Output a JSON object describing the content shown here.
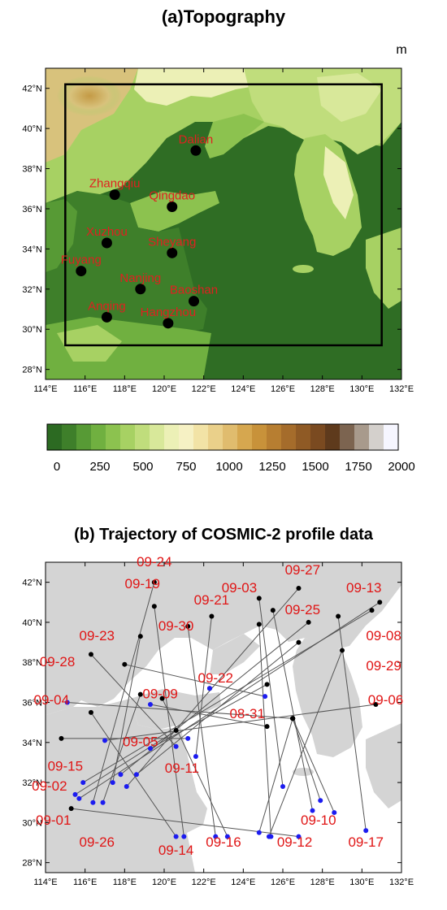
{
  "panel_a": {
    "title": "(a)Topography",
    "unit": "m",
    "lon_ticks": [
      "114°E",
      "116°E",
      "118°E",
      "120°E",
      "122°E",
      "124°E",
      "126°E",
      "128°E",
      "130°E",
      "132°E"
    ],
    "lat_ticks": [
      "28°N",
      "30°N",
      "32°N",
      "34°N",
      "36°N",
      "38°N",
      "40°N",
      "42°N"
    ],
    "colorbar": {
      "labels": [
        "0",
        "250",
        "500",
        "750",
        "1000",
        "1250",
        "1500",
        "1750",
        "2000"
      ],
      "colors": [
        "#2c6a22",
        "#3e7f2a",
        "#579a35",
        "#70b040",
        "#8cc24f",
        "#a7d163",
        "#c0dd7c",
        "#d8e89a",
        "#ecf0b6",
        "#f6f1c4",
        "#f2e3a6",
        "#ead08a",
        "#e0bc6e",
        "#d6a74f",
        "#c8923a",
        "#b77e31",
        "#a56c2b",
        "#8f5a25",
        "#7a4a20",
        "#5e3a1c",
        "#7c6450",
        "#a89a8c",
        "#d4d0cc",
        "#f6f6ff"
      ]
    },
    "cities": [
      {
        "name": "Dalian",
        "lon": 121.6,
        "lat": 38.9
      },
      {
        "name": "Zhangqiu",
        "lon": 117.5,
        "lat": 36.7
      },
      {
        "name": "Qingdao",
        "lon": 120.4,
        "lat": 36.1
      },
      {
        "name": "Xuzhou",
        "lon": 117.1,
        "lat": 34.3
      },
      {
        "name": "Sheyang",
        "lon": 120.4,
        "lat": 33.8
      },
      {
        "name": "Fuyang",
        "lon": 115.8,
        "lat": 32.9
      },
      {
        "name": "Nanjing",
        "lon": 118.8,
        "lat": 32.0
      },
      {
        "name": "Baoshan",
        "lon": 121.5,
        "lat": 31.4
      },
      {
        "name": "Anqing",
        "lon": 117.1,
        "lat": 30.6
      },
      {
        "name": "Hangzhou",
        "lon": 120.2,
        "lat": 30.3
      }
    ],
    "domain_box": {
      "lon_min": 115.0,
      "lon_max": 131.0,
      "lat_min": 29.2,
      "lat_max": 42.2
    },
    "colors": {
      "city_marker": "#000000",
      "city_label": "#e02020"
    }
  },
  "panel_b": {
    "title": "(b) Trajectory of COSMIC-2 profile data",
    "lon_ticks": [
      "114°E",
      "116°E",
      "118°E",
      "120°E",
      "122°E",
      "124°E",
      "126°E",
      "128°E",
      "130°E",
      "132°E"
    ],
    "lat_ticks": [
      "28°N",
      "30°N",
      "32°N",
      "34°N",
      "36°N",
      "38°N",
      "40°N",
      "42°N"
    ],
    "colors": {
      "land": "#d4d4d4",
      "sea": "#ffffff",
      "line": "#555555",
      "start": "#000000",
      "end": "#1c1cf0",
      "label": "#e01515"
    },
    "tracks": [
      {
        "start": [
          119.5,
          42.0
        ],
        "end": [
          116.4,
          31.0
        ]
      },
      {
        "start": [
          119.5,
          40.8
        ],
        "end": [
          121.0,
          29.3
        ]
      },
      {
        "start": [
          121.2,
          39.8
        ],
        "end": [
          122.6,
          29.3
        ]
      },
      {
        "start": [
          122.4,
          40.3
        ],
        "end": [
          121.6,
          33.3
        ]
      },
      {
        "start": [
          124.8,
          41.2
        ],
        "end": [
          126.0,
          31.8
        ]
      },
      {
        "start": [
          125.5,
          40.6
        ],
        "end": [
          127.5,
          30.6
        ]
      },
      {
        "start": [
          126.8,
          41.7
        ],
        "end": [
          118.1,
          31.8
        ]
      },
      {
        "start": [
          127.3,
          40.0
        ],
        "end": [
          117.8,
          32.4
        ]
      },
      {
        "start": [
          130.5,
          40.6
        ],
        "end": [
          115.9,
          32.0
        ]
      },
      {
        "start": [
          130.9,
          41.0
        ],
        "end": [
          115.7,
          31.2
        ]
      },
      {
        "start": [
          129.0,
          38.6
        ],
        "end": [
          125.3,
          29.3
        ]
      },
      {
        "start": [
          118.0,
          37.9
        ],
        "end": [
          125.1,
          36.3
        ]
      },
      {
        "start": [
          116.3,
          38.4
        ],
        "end": [
          120.6,
          33.8
        ]
      },
      {
        "start": [
          116.3,
          35.5
        ],
        "end": [
          120.6,
          29.3
        ]
      },
      {
        "start": [
          118.8,
          36.4
        ],
        "end": [
          116.9,
          31.0
        ]
      },
      {
        "start": [
          124.8,
          39.9
        ],
        "end": [
          125.4,
          29.3
        ]
      },
      {
        "start": [
          126.8,
          39.0
        ],
        "end": [
          118.6,
          32.4
        ]
      },
      {
        "start": [
          125.2,
          36.9
        ],
        "end": [
          119.3,
          33.7
        ]
      },
      {
        "start": [
          119.9,
          36.2
        ],
        "end": [
          123.2,
          29.3
        ]
      },
      {
        "start": [
          122.3,
          36.7
        ],
        "end": [
          122.3,
          36.7
        ]
      },
      {
        "start": [
          120.6,
          34.6
        ],
        "end": [
          115.5,
          31.4
        ]
      },
      {
        "start": [
          130.7,
          35.9
        ],
        "end": [
          117.0,
          34.1
        ]
      },
      {
        "start": [
          125.2,
          34.8
        ],
        "end": [
          119.3,
          35.9
        ]
      },
      {
        "start": [
          115.3,
          30.7
        ],
        "end": [
          126.8,
          29.3
        ]
      },
      {
        "start": [
          118.8,
          39.3
        ],
        "end": [
          117.4,
          32.0
        ]
      },
      {
        "start": [
          128.8,
          40.3
        ],
        "end": [
          130.2,
          29.6
        ]
      },
      {
        "start": [
          114.8,
          34.2
        ],
        "end": [
          121.2,
          34.2
        ]
      },
      {
        "start": [
          126.5,
          35.2
        ],
        "end": [
          115.1,
          36.0
        ]
      },
      {
        "start": [
          126.5,
          35.2
        ],
        "end": [
          128.6,
          30.5
        ]
      },
      {
        "start": [
          126.5,
          35.2
        ],
        "end": [
          127.9,
          31.1
        ]
      },
      {
        "start": [
          126.5,
          35.2
        ],
        "end": [
          124.8,
          29.5
        ]
      }
    ],
    "labels": [
      {
        "text": "09-24",
        "lon": 119.5,
        "lat": 42.8
      },
      {
        "text": "09-19",
        "lon": 118.9,
        "lat": 41.7
      },
      {
        "text": "09-03",
        "lon": 123.8,
        "lat": 41.5
      },
      {
        "text": "09-27",
        "lon": 127.0,
        "lat": 42.4
      },
      {
        "text": "09-13",
        "lon": 130.1,
        "lat": 41.5
      },
      {
        "text": "09-21",
        "lon": 122.4,
        "lat": 40.9
      },
      {
        "text": "09-25",
        "lon": 127.0,
        "lat": 40.4
      },
      {
        "text": "09-30",
        "lon": 120.6,
        "lat": 39.6
      },
      {
        "text": "09-23",
        "lon": 116.6,
        "lat": 39.1
      },
      {
        "text": "09-08",
        "lon": 131.1,
        "lat": 39.1
      },
      {
        "text": "09-28",
        "lon": 114.6,
        "lat": 37.8
      },
      {
        "text": "09-29",
        "lon": 131.1,
        "lat": 37.6
      },
      {
        "text": "09-22",
        "lon": 122.6,
        "lat": 37.0
      },
      {
        "text": "09-09",
        "lon": 119.8,
        "lat": 36.2
      },
      {
        "text": "09-04",
        "lon": 114.3,
        "lat": 35.9
      },
      {
        "text": "09-06",
        "lon": 131.2,
        "lat": 35.9
      },
      {
        "text": "08-31",
        "lon": 124.2,
        "lat": 35.2
      },
      {
        "text": "09-05",
        "lon": 118.8,
        "lat": 33.8
      },
      {
        "text": "09-11",
        "lon": 120.9,
        "lat": 32.5
      },
      {
        "text": "09-15",
        "lon": 115.0,
        "lat": 32.6
      },
      {
        "text": "09-02",
        "lon": 114.2,
        "lat": 31.6
      },
      {
        "text": "09-01",
        "lon": 114.4,
        "lat": 29.9
      },
      {
        "text": "09-10",
        "lon": 127.8,
        "lat": 29.9
      },
      {
        "text": "09-26",
        "lon": 116.6,
        "lat": 28.8
      },
      {
        "text": "09-16",
        "lon": 123.0,
        "lat": 28.8
      },
      {
        "text": "09-12",
        "lon": 126.6,
        "lat": 28.8
      },
      {
        "text": "09-17",
        "lon": 130.2,
        "lat": 28.8
      },
      {
        "text": "09-14",
        "lon": 120.6,
        "lat": 28.4
      }
    ]
  }
}
